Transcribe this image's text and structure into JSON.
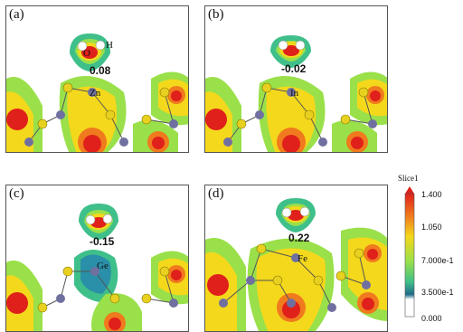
{
  "panels": [
    {
      "label": "(a)",
      "metal": "Zn",
      "charge": "0.08",
      "h_label": "H",
      "o_label": "O"
    },
    {
      "label": "(b)",
      "metal": "In",
      "charge": "-0.02"
    },
    {
      "label": "(c)",
      "metal": "Ge",
      "charge": "-0.15"
    },
    {
      "label": "(d)",
      "metal": "Fe",
      "charge": "0.22"
    }
  ],
  "legend": {
    "title": "Slice1",
    "ticks": [
      "1.400",
      "1.050",
      "7.000e-1",
      "3.500e-1",
      "0.000"
    ],
    "colors": [
      "#e0201a",
      "#f07a1e",
      "#f4d81c",
      "#9ae04a",
      "#3fbf8a",
      "#2a8fa8",
      "#1f6a8a",
      "#ffffff"
    ]
  }
}
